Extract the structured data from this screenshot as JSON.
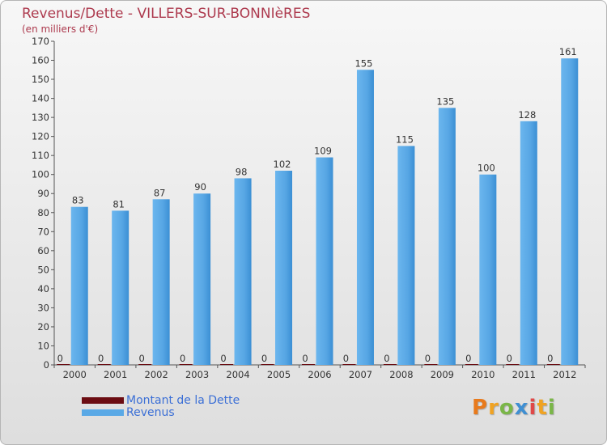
{
  "title": "Revenus/Dette - VILLERS-SUR-BONNIèRES",
  "subtitle": "(en milliers d'€)",
  "colors": {
    "dette": "#6b0c12",
    "revenus": "#5aa9e6",
    "revenus_dark": "#2f86cf"
  },
  "chart_data": {
    "type": "bar",
    "title": "Revenus/Dette - VILLERS-SUR-BONNIèRES",
    "ylabel": "(en milliers d'€)",
    "categories": [
      "2000",
      "2001",
      "2002",
      "2003",
      "2004",
      "2005",
      "2006",
      "2007",
      "2008",
      "2009",
      "2010",
      "2011",
      "2012"
    ],
    "series": [
      {
        "name": "Montant de la Dette",
        "values": [
          0,
          0,
          0,
          0,
          0,
          0,
          0,
          0,
          0,
          0,
          0,
          0,
          0
        ]
      },
      {
        "name": "Revenus",
        "values": [
          83,
          81,
          87,
          90,
          98,
          102,
          109,
          155,
          115,
          135,
          100,
          128,
          161
        ]
      }
    ],
    "ylim": [
      0,
      170
    ],
    "yticks": [
      0,
      10,
      20,
      30,
      40,
      50,
      60,
      70,
      80,
      90,
      100,
      110,
      120,
      130,
      140,
      150,
      160,
      170
    ],
    "grid": false,
    "legend": "bottom-left"
  },
  "legend": [
    {
      "label": "Montant de la Dette"
    },
    {
      "label": "Revenus"
    }
  ],
  "logo": {
    "letters": [
      "P",
      "r",
      "o",
      "x",
      "i",
      "t",
      "i"
    ],
    "colors": [
      "#e87a1c",
      "#f0a323",
      "#7ab648",
      "#3f8fd2",
      "#e04848",
      "#f0a323",
      "#7ab648"
    ]
  }
}
